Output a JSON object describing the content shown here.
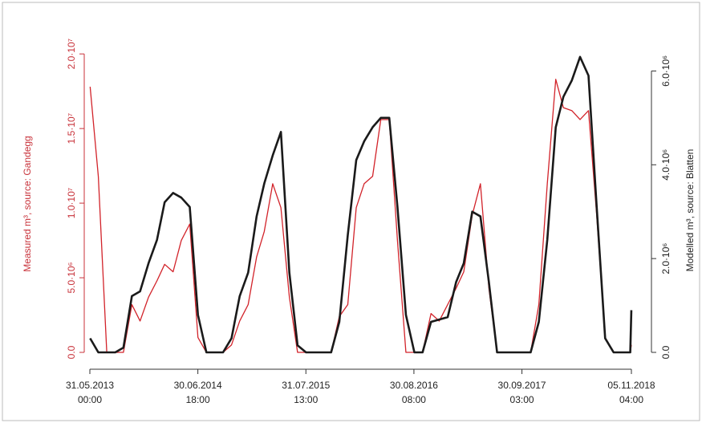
{
  "chart_data": {
    "type": "line",
    "x": [
      "2013-06-01",
      "2013-07-01",
      "2013-08-01",
      "2013-09-01",
      "2013-10-01",
      "2013-11-01",
      "2013-12-01",
      "2014-01-01",
      "2014-02-01",
      "2014-03-01",
      "2014-04-01",
      "2014-05-01",
      "2014-06-01",
      "2014-07-01",
      "2014-08-01",
      "2014-09-01",
      "2014-10-01",
      "2014-11-01",
      "2014-12-01",
      "2015-01-01",
      "2015-02-01",
      "2015-03-01",
      "2015-04-01",
      "2015-05-01",
      "2015-06-01",
      "2015-07-01",
      "2015-08-01",
      "2015-09-01",
      "2015-10-01",
      "2015-11-01",
      "2015-12-01",
      "2016-01-01",
      "2016-02-01",
      "2016-03-01",
      "2016-04-01",
      "2016-05-01",
      "2016-06-01",
      "2016-07-01",
      "2016-08-01",
      "2016-09-01",
      "2016-10-01",
      "2016-11-01",
      "2016-12-01",
      "2017-01-01",
      "2017-02-01",
      "2017-03-01",
      "2017-04-01",
      "2017-05-01",
      "2017-06-01",
      "2017-07-01",
      "2017-08-01",
      "2017-09-01",
      "2017-10-01",
      "2017-11-01",
      "2017-12-01",
      "2018-01-01",
      "2018-02-01",
      "2018-03-01",
      "2018-04-01",
      "2018-05-01",
      "2018-06-01",
      "2018-07-01",
      "2018-08-01",
      "2018-09-01",
      "2018-10-01",
      "2018-11-01",
      "2018-11-05"
    ],
    "series": [
      {
        "name": "Measured m³, source: Gandegg",
        "color": "#d2232a",
        "axis": "y",
        "values": [
          17800000,
          11800000,
          0,
          0,
          0,
          3200000,
          2100000,
          3700000,
          4800000,
          5900000,
          5400000,
          7500000,
          8600000,
          1000000,
          0,
          0,
          0,
          500000,
          2100000,
          3200000,
          6400000,
          8100000,
          11300000,
          9700000,
          3700000,
          0,
          0,
          0,
          0,
          0,
          2400000,
          3200000,
          9700000,
          11300000,
          11800000,
          15600000,
          15600000,
          7500000,
          0,
          0,
          0,
          2600000,
          2100000,
          3200000,
          4300000,
          5400000,
          9200000,
          11300000,
          4300000,
          0,
          0,
          0,
          0,
          0,
          3200000,
          11300000,
          18300000,
          16400000,
          16200000,
          15600000,
          16200000,
          9200000,
          1000000,
          0,
          0,
          0,
          500000
        ]
      },
      {
        "name": "Modelled m³, source: Blatten",
        "color": "#1a1a1a",
        "axis": "y2",
        "values": [
          300000,
          0,
          0,
          0,
          100000,
          1200000,
          1300000,
          1900000,
          2400000,
          3200000,
          3400000,
          3300000,
          3100000,
          800000,
          0,
          0,
          0,
          300000,
          1200000,
          1700000,
          2900000,
          3600000,
          4200000,
          4700000,
          1700000,
          150000,
          0,
          0,
          0,
          0,
          650000,
          2500000,
          4100000,
          4500000,
          4800000,
          5000000,
          5000000,
          3100000,
          800000,
          0,
          0,
          650000,
          700000,
          750000,
          1500000,
          1900000,
          3000000,
          2900000,
          1500000,
          0,
          0,
          0,
          0,
          0,
          650000,
          2400000,
          4800000,
          5450000,
          5800000,
          6300000,
          5900000,
          3100000,
          300000,
          0,
          0,
          0,
          900000
        ]
      }
    ],
    "xlim": [
      "2013-05-31T00:00",
      "2018-11-05T04:00"
    ],
    "xticks": [
      {
        "value": "2013-05-31T00:00",
        "label": "31.05.2013 00:00"
      },
      {
        "value": "2014-06-30T18:00",
        "label": "30.06.2014 18:00"
      },
      {
        "value": "2015-07-31T13:00",
        "label": "31.07.2015 13:00"
      },
      {
        "value": "2016-08-30T08:00",
        "label": "30.08.2016 08:00"
      },
      {
        "value": "2017-09-30T03:00",
        "label": "30.09.2017 03:00"
      },
      {
        "value": "2018-11-05T04:00",
        "label": "05.11.2018 04:00"
      }
    ],
    "ylim": [
      0,
      22000000
    ],
    "yticks": [
      {
        "value": 0,
        "label": "0.0"
      },
      {
        "value": 5000000,
        "label": "5.0·10⁶"
      },
      {
        "value": 10000000,
        "label": "1.0·10⁷"
      },
      {
        "value": 15000000,
        "label": "1.5·10⁷"
      },
      {
        "value": 20000000,
        "label": "2.0·10⁷"
      }
    ],
    "y_label": "Measured m³, source: Gandegg",
    "y2lim": [
      0,
      7000000
    ],
    "y2ticks": [
      {
        "value": 0,
        "label": "0.0"
      },
      {
        "value": 2000000,
        "label": "2.0·10⁶"
      },
      {
        "value": 4000000,
        "label": "4.0·10⁶"
      },
      {
        "value": 6000000,
        "label": "6.0·10⁶"
      }
    ],
    "y2_label": "Modelled m³, source: Blatten"
  }
}
